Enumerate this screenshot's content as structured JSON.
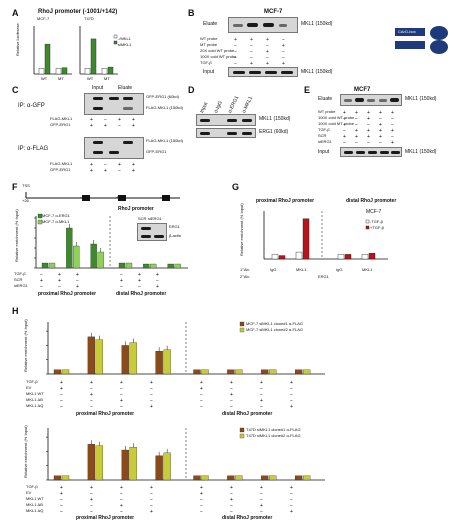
{
  "panels": {
    "A": {
      "label": "A",
      "title": "RhoJ promoter (-1001/+142)",
      "cells": [
        "MCF-7",
        "T47D"
      ],
      "ylabel": "Relative luciferase",
      "legend": [
        "-/MKL1",
        "siMKL1"
      ]
    },
    "B": {
      "label": "B",
      "title": "MCF-7",
      "lanes_label": "Eluate",
      "band": "MKL1 (150kd)",
      "rows": [
        "WT probe",
        "MT probe",
        "20X cold WT probe",
        "100X cold WT probe",
        "TGF-β"
      ],
      "input_label": "Input",
      "input_band": "MKL1 (150kd)",
      "probe_box": "CArG-box",
      "bead_label": "Magnetic Beads"
    },
    "C": {
      "label": "C",
      "top_headers": [
        "Input",
        "Eluate"
      ],
      "ip1": "IP: α-GFP",
      "ip1_bands": [
        "GFP-ERG1 (60kd)",
        "FLAG-MKL1 (150kd)"
      ],
      "rows1": [
        "FLAG-MKL1",
        "GFP-ERG1"
      ],
      "ip2": "IP: α-FLAG",
      "ip2_bands": [
        "FLAG-MKL1 (150kd)",
        "GFP-ERG1"
      ],
      "rows2": [
        "FLAG-MKL1",
        "GFP-ERG1"
      ]
    },
    "D": {
      "label": "D",
      "lanes": [
        "Input",
        "α-IgG",
        "α-ERG1",
        "α-MKL1"
      ],
      "bands": [
        "MKL1 (150kd)",
        "ERG1 (60kd)"
      ]
    },
    "E": {
      "label": "E",
      "title": "MCF7",
      "lanes_label": "Eluate",
      "band": "MKL1 (150kd)",
      "rows": [
        "WT probe",
        "100X cold WT probe",
        "100X cold MT probe",
        "TGF-β",
        "SCR",
        "siERG1"
      ],
      "input_label": "Input",
      "input_band": "MKL1 (150kd)"
    },
    "F": {
      "label": "F",
      "tss": "TSS",
      "promoter_label": "RhoJ promoter",
      "positions": [
        "+26",
        "-132",
        "-672",
        "-1018"
      ],
      "ylabel": "Relative enrichment (% Input)",
      "legend": [
        "MCF-7 α-ERG1",
        "MCF-7 α-MKL1"
      ],
      "inset": [
        "SCR",
        "siERG1",
        "ERG1",
        "β-actin"
      ],
      "rows": [
        "TGF-β",
        "SCR",
        "siERG1"
      ],
      "regions": [
        "proximal RhoJ promoter",
        "distal RhoJ promoter"
      ]
    },
    "G": {
      "label": "G",
      "headers": [
        "proximal RhoJ promoter",
        "distal RhoJ promoter"
      ],
      "cell": "MCF-7",
      "ylabel": "Relative enrichment (% Input)",
      "legend": [
        "-TGF-β",
        "+TGF-β"
      ],
      "row1_label": "1°Ab:",
      "row1": [
        "IgG",
        "MKL1",
        "IgG",
        "MKL1"
      ],
      "row2_label": "2°Ab:",
      "row2": "ERG1"
    },
    "H": {
      "label": "H",
      "ylabel": "Relative enrichment (% Input)",
      "legend_top": [
        "MCF-7 siMKL1 clone#1 α-FLAG",
        "MCF-7 siMKL1 clone#2 α-FLAG"
      ],
      "legend_bottom": [
        "T47D siMKL1 clone#1 α-FLAG",
        "T47D siMKL1 clone#2 α-FLAG"
      ],
      "rows": [
        "TGF-β",
        "EV",
        "MKL1 WT",
        "MKL1 ΔB",
        "MKL1 ΔQ"
      ],
      "regions": [
        "proximal RhoJ promoter",
        "distal RhoJ promoter"
      ]
    }
  },
  "colors": {
    "green": "#3d8a2a",
    "brown": "#8a4a1c",
    "yellow": "#c9cc3a",
    "red": "#b8141a",
    "gray": "#555555",
    "probe_blue": "#1e3a7a"
  },
  "chart_data": [
    {
      "type": "bar",
      "panel": "A-MCF-7",
      "categories": [
        "WT",
        "MT"
      ],
      "series": [
        {
          "name": "-/MKL1",
          "values": [
            1.0,
            1.0
          ]
        },
        {
          "name": "siMKL1",
          "values": [
            5.2,
            1.1
          ]
        }
      ],
      "ylim": [
        0,
        8
      ]
    },
    {
      "type": "bar",
      "panel": "A-T47D",
      "categories": [
        "WT",
        "MT"
      ],
      "series": [
        {
          "name": "-/MKL1",
          "values": [
            1.0,
            1.0
          ]
        },
        {
          "name": "siMKL1",
          "values": [
            6.1,
            1.2
          ]
        }
      ],
      "ylim": [
        0,
        8
      ]
    },
    {
      "type": "bar",
      "panel": "F",
      "series": [
        {
          "name": "MCF-7 α-ERG1",
          "values": [
            0.5,
            4.0,
            2.4,
            0.5,
            0.4,
            0.4
          ]
        },
        {
          "name": "MCF-7 α-MKL1",
          "values": [
            0.5,
            2.2,
            1.6,
            0.5,
            0.4,
            0.4
          ]
        }
      ],
      "ylim": [
        0,
        5
      ]
    },
    {
      "type": "bar",
      "panel": "G",
      "categories": [
        "IgG",
        "MKL1",
        "IgG",
        "MKL1"
      ],
      "series": [
        {
          "name": "-TGF-β",
          "values": [
            0.004,
            0.006,
            0.004,
            0.004
          ]
        },
        {
          "name": "+TGF-β",
          "values": [
            0.003,
            0.035,
            0.004,
            0.005
          ]
        }
      ],
      "ylim": [
        0,
        0.04
      ]
    },
    {
      "type": "bar",
      "panel": "H-top",
      "series": [
        {
          "name": "MCF-7 siMKL1 clone#1 α-FLAG",
          "values": [
            0.3,
            2.6,
            2.0,
            1.6,
            0.3,
            0.3,
            0.3,
            0.3
          ]
        },
        {
          "name": "MCF-7 siMKL1 clone#2 α-FLAG",
          "values": [
            0.3,
            2.4,
            2.2,
            1.7,
            0.3,
            0.3,
            0.3,
            0.3
          ]
        }
      ],
      "ylim": [
        0,
        3.5
      ]
    },
    {
      "type": "bar",
      "panel": "H-bottom",
      "series": [
        {
          "name": "T47D siMKL1 clone#1 α-FLAG",
          "values": [
            0.3,
            2.5,
            2.1,
            1.7,
            0.3,
            0.3,
            0.3,
            0.3
          ]
        },
        {
          "name": "T47D siMKL1 clone#2 α-FLAG",
          "values": [
            0.3,
            2.4,
            2.3,
            1.9,
            0.3,
            0.3,
            0.3,
            0.3
          ]
        }
      ],
      "ylim": [
        0,
        3.5
      ]
    }
  ]
}
